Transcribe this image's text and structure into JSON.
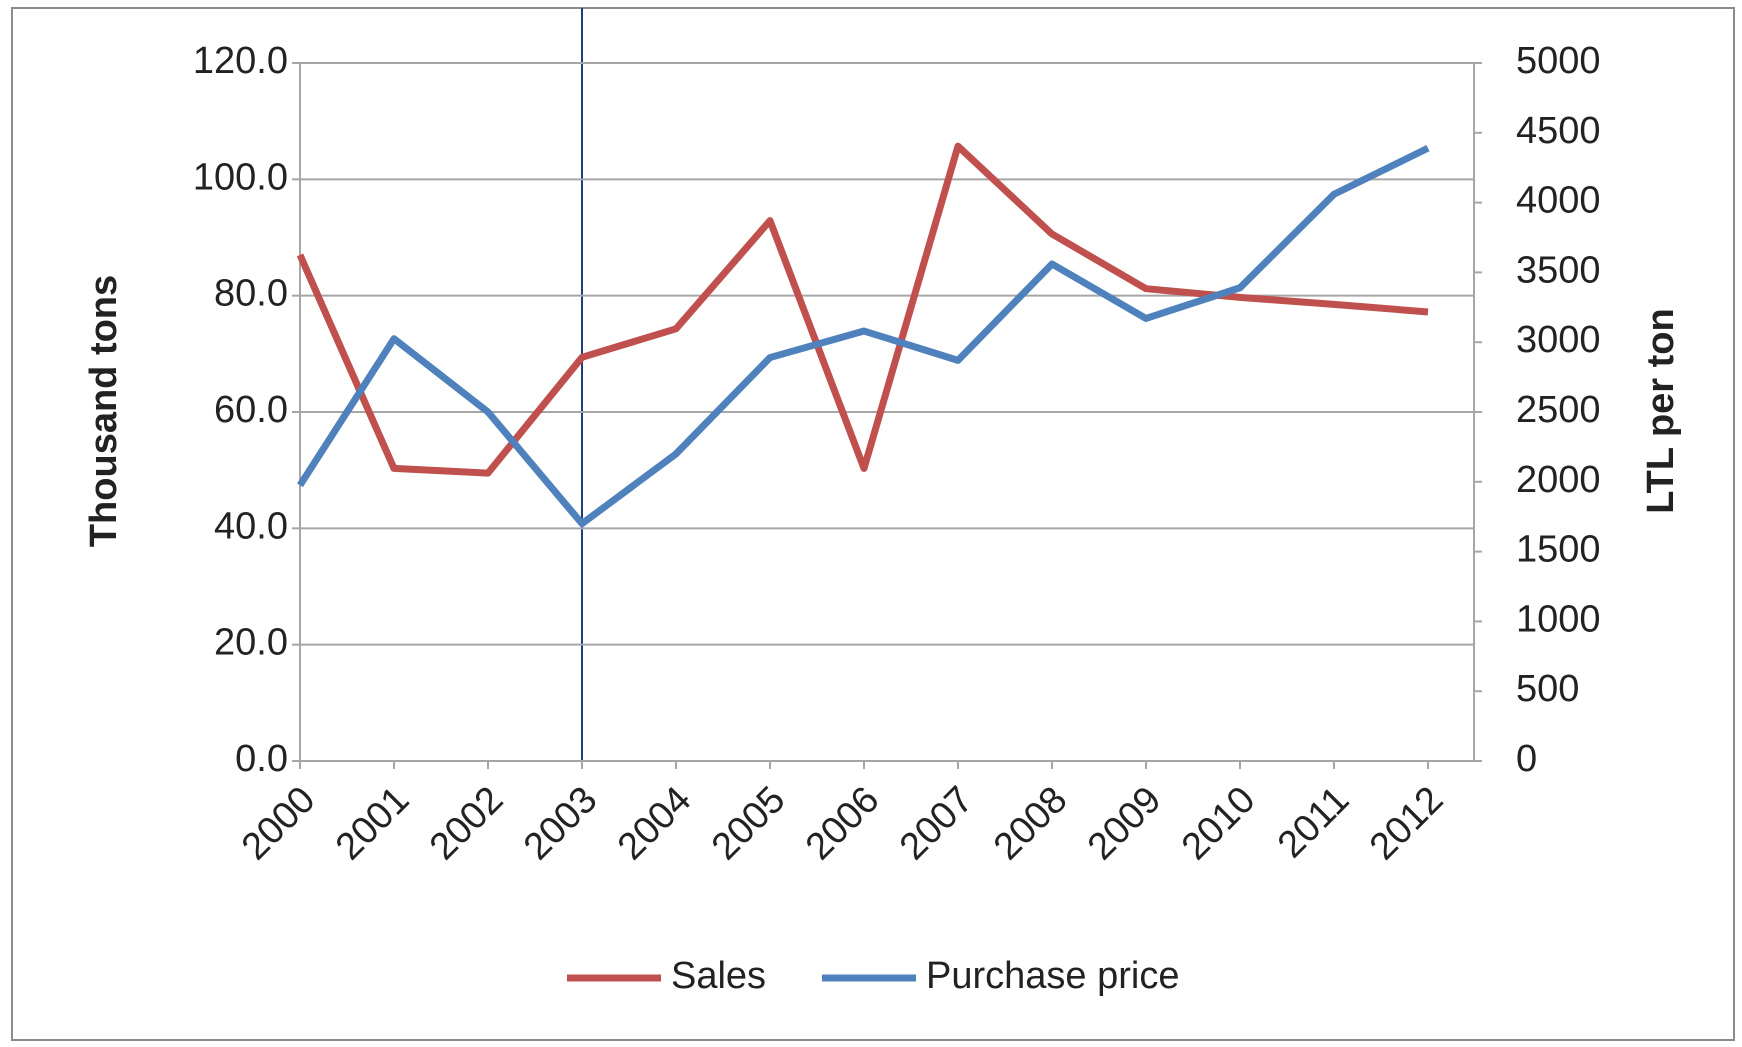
{
  "chart_data": {
    "type": "line",
    "categories": [
      "2000",
      "2001",
      "2002",
      "2003",
      "2004",
      "2005",
      "2006",
      "2007",
      "2008",
      "2009",
      "2010",
      "2011",
      "2012"
    ],
    "series": [
      {
        "name": "Sales",
        "color": "#c0504d",
        "values": [
          87,
          50.3,
          49.5,
          69.4,
          74.3,
          92.9,
          50.3,
          105.7,
          90.6,
          81.2,
          79.7,
          78.5,
          77.2
        ]
      },
      {
        "name": "Purchase price",
        "color": "#4f81bd",
        "axis": "y2",
        "values": [
          1975,
          3025,
          2500,
          1700,
          2200,
          2890,
          3080,
          2870,
          3560,
          3170,
          3390,
          4060,
          4390
        ]
      }
    ],
    "ylabel": "Thousand tons",
    "y2label": "LTL per ton",
    "ylim": [
      0,
      120
    ],
    "yticks": [
      {
        "value": 0,
        "label": "0.0"
      },
      {
        "value": 20,
        "label": "20.0"
      },
      {
        "value": 40,
        "label": "40.0"
      },
      {
        "value": 60,
        "label": "60.0"
      },
      {
        "value": 80,
        "label": "80.0"
      },
      {
        "value": 100,
        "label": "100.0"
      },
      {
        "value": 120,
        "label": "120.0"
      }
    ],
    "y2lim": [
      0,
      5000
    ],
    "y2ticks": [
      0,
      500,
      1000,
      1500,
      2000,
      2500,
      3000,
      3500,
      4000,
      4500,
      5000
    ],
    "grid": true,
    "legend": "bottom"
  }
}
